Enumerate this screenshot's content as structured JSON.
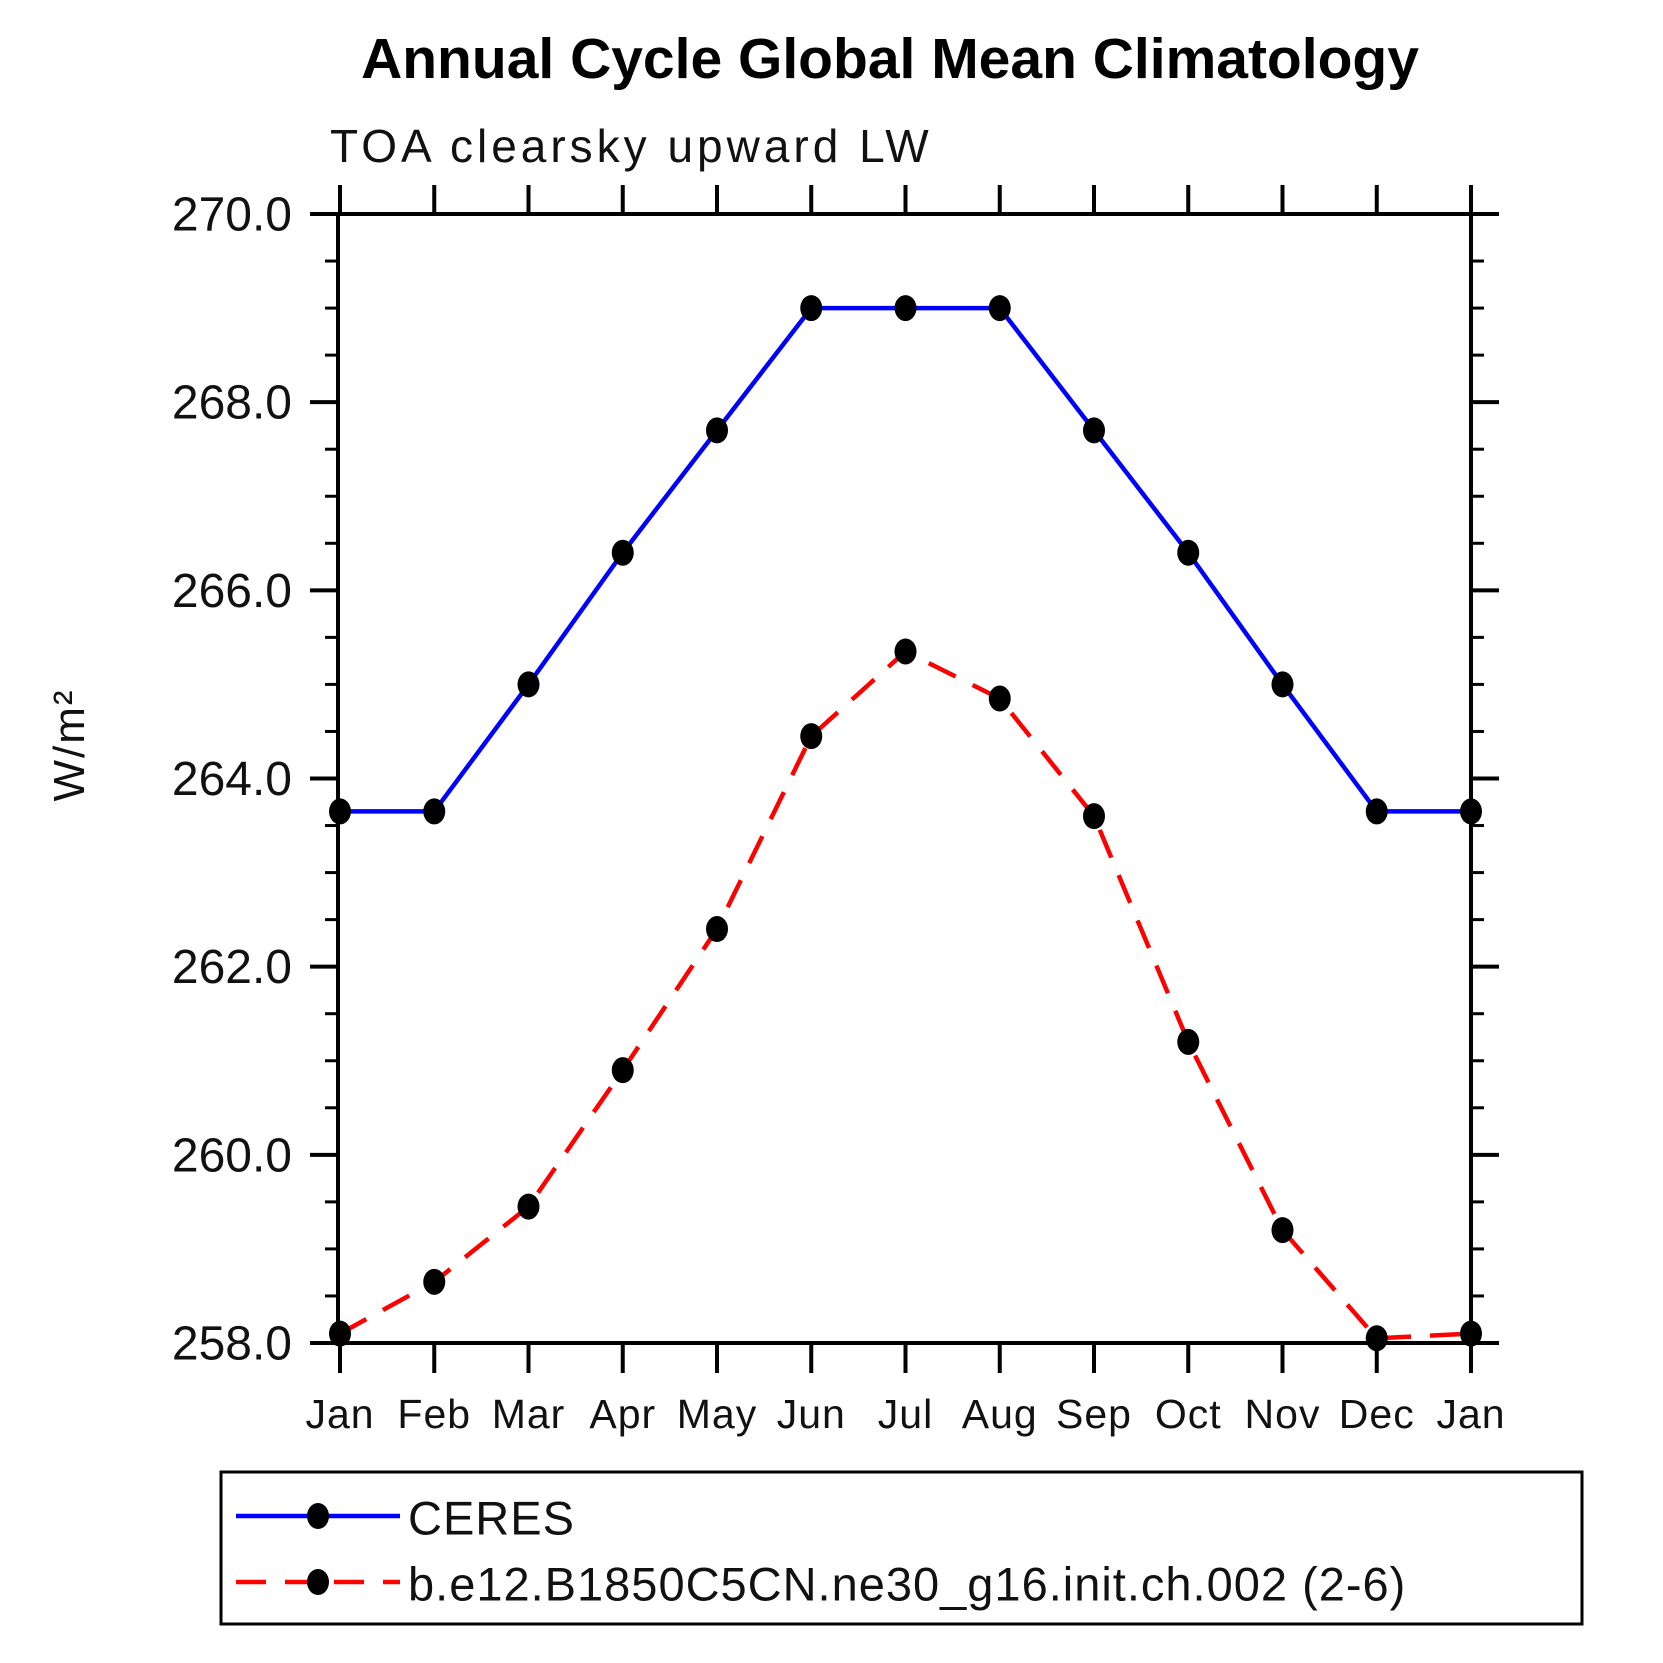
{
  "page": {
    "background": "#ffffff"
  },
  "chart_data": {
    "type": "line",
    "title": "Annual Cycle Global Mean Climatology",
    "subtitle": "TOA clearsky upward LW",
    "ylabel": "W/m²",
    "xlabel": "",
    "categories": [
      "Jan",
      "Feb",
      "Mar",
      "Apr",
      "May",
      "Jun",
      "Jul",
      "Aug",
      "Sep",
      "Oct",
      "Nov",
      "Dec",
      "Jan"
    ],
    "ylim": [
      258.0,
      270.0
    ],
    "ytick_major_interval": 2.0,
    "ytick_minor_interval": 0.5,
    "ytick_labels": [
      "270.0",
      "268.0",
      "266.0",
      "264.0",
      "262.0",
      "260.0",
      "258.0"
    ],
    "grid": false,
    "legend_position": "bottom-left",
    "axis_color": "#000000",
    "series": [
      {
        "name": "CERES",
        "color": "#0000ff",
        "style": "solid",
        "marker": "filled-circle",
        "marker_color": "#000000",
        "values": [
          263.65,
          263.65,
          265.0,
          266.4,
          267.7,
          269.0,
          269.0,
          269.0,
          267.7,
          266.4,
          265.0,
          263.65,
          263.65
        ]
      },
      {
        "name": "b.e12.B1850C5CN.ne30_g16.init.ch.002 (2-6)",
        "color": "#ff0000",
        "style": "dashed",
        "marker": "filled-circle",
        "marker_color": "#000000",
        "values": [
          258.1,
          258.65,
          259.45,
          260.9,
          262.4,
          264.45,
          265.35,
          264.85,
          263.6,
          261.2,
          259.2,
          258.05,
          258.1
        ]
      }
    ]
  }
}
